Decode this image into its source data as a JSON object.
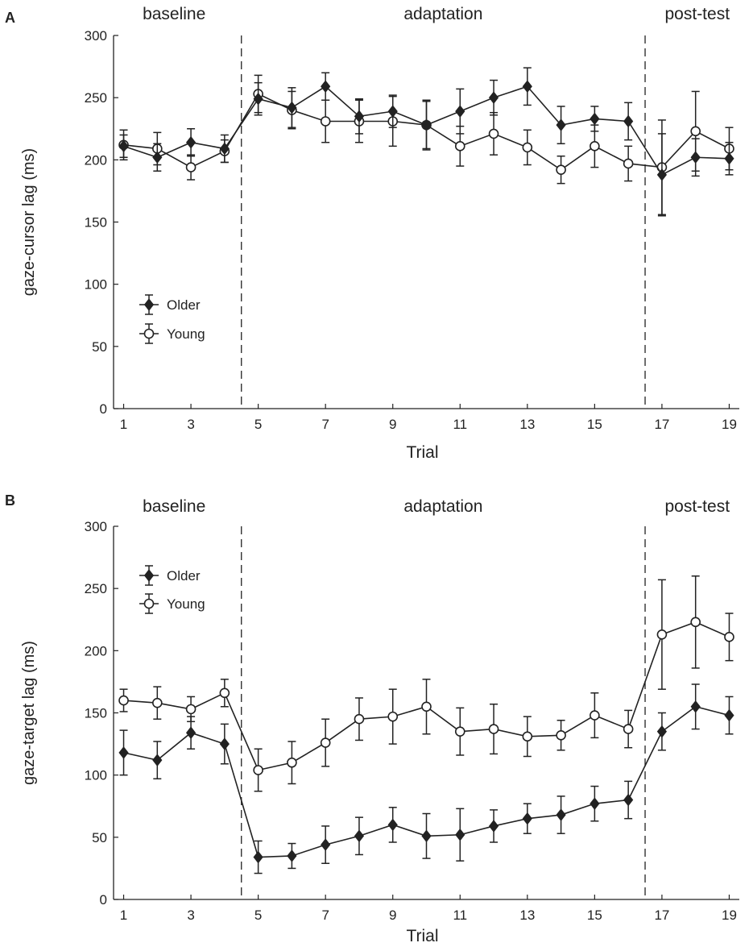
{
  "chart_data": [
    {
      "type": "line",
      "panel_label": "A",
      "xlabel": "Trial",
      "ylabel": "gaze-cursor lag (ms)",
      "xlim": [
        0.7,
        19.3
      ],
      "ylim": [
        0,
        300
      ],
      "xticks": [
        1,
        3,
        5,
        7,
        9,
        11,
        13,
        15,
        17,
        19
      ],
      "yticks": [
        0,
        50,
        100,
        150,
        200,
        250,
        300
      ],
      "phase_boundaries": [
        4.5,
        16.5
      ],
      "phases": [
        {
          "label": "baseline",
          "center": 2.5
        },
        {
          "label": "adaptation",
          "center": 10.5
        },
        {
          "label": "post-test",
          "center": 18.05
        }
      ],
      "x": [
        1,
        2,
        3,
        4,
        5,
        6,
        7,
        8,
        9,
        10,
        11,
        12,
        13,
        14,
        15,
        16,
        17,
        18,
        19
      ],
      "series": [
        {
          "name": "Older",
          "marker": "diamond",
          "values": [
            211,
            202,
            214,
            209,
            249,
            242,
            259,
            235,
            239,
            228,
            239,
            250,
            259,
            228,
            233,
            231,
            188,
            202,
            201
          ],
          "errors": [
            9,
            11,
            11,
            11,
            13,
            16,
            11,
            14,
            13,
            20,
            18,
            14,
            15,
            15,
            10,
            15,
            33,
            15,
            13
          ]
        },
        {
          "name": "Young",
          "marker": "circle",
          "values": [
            212,
            209,
            194,
            207,
            253,
            240,
            231,
            231,
            231,
            228,
            211,
            221,
            210,
            192,
            211,
            197,
            194,
            223,
            209
          ],
          "errors": [
            12,
            13,
            10,
            9,
            15,
            15,
            17,
            17,
            20,
            19,
            16,
            17,
            14,
            11,
            17,
            14,
            38,
            32,
            17
          ]
        }
      ],
      "legend": {
        "items": [
          "Older",
          "Young"
        ],
        "position": "bottom-left"
      }
    },
    {
      "type": "line",
      "panel_label": "B",
      "xlabel": "Trial",
      "ylabel": "gaze-target lag (ms)",
      "xlim": [
        0.7,
        19.3
      ],
      "ylim": [
        0,
        300
      ],
      "xticks": [
        1,
        3,
        5,
        7,
        9,
        11,
        13,
        15,
        17,
        19
      ],
      "yticks": [
        0,
        50,
        100,
        150,
        200,
        250,
        300
      ],
      "phase_boundaries": [
        4.5,
        16.5
      ],
      "phases": [
        {
          "label": "baseline",
          "center": 2.5
        },
        {
          "label": "adaptation",
          "center": 10.5
        },
        {
          "label": "post-test",
          "center": 18.05
        }
      ],
      "x": [
        1,
        2,
        3,
        4,
        5,
        6,
        7,
        8,
        9,
        10,
        11,
        12,
        13,
        14,
        15,
        16,
        17,
        18,
        19
      ],
      "series": [
        {
          "name": "Older",
          "marker": "diamond",
          "values": [
            118,
            112,
            134,
            125,
            34,
            35,
            44,
            51,
            60,
            51,
            52,
            59,
            65,
            68,
            77,
            80,
            135,
            155,
            148
          ],
          "errors": [
            18,
            15,
            13,
            16,
            13,
            10,
            15,
            15,
            14,
            18,
            21,
            13,
            12,
            15,
            14,
            15,
            15,
            18,
            15
          ]
        },
        {
          "name": "Young",
          "marker": "circle",
          "values": [
            160,
            158,
            153,
            166,
            104,
            110,
            126,
            145,
            147,
            155,
            135,
            137,
            131,
            132,
            148,
            137,
            213,
            223,
            211
          ],
          "errors": [
            9,
            13,
            10,
            11,
            17,
            17,
            19,
            17,
            22,
            22,
            19,
            20,
            16,
            12,
            18,
            15,
            44,
            37,
            19
          ]
        }
      ],
      "legend": {
        "items": [
          "Older",
          "Young"
        ],
        "position": "top-left"
      }
    }
  ]
}
